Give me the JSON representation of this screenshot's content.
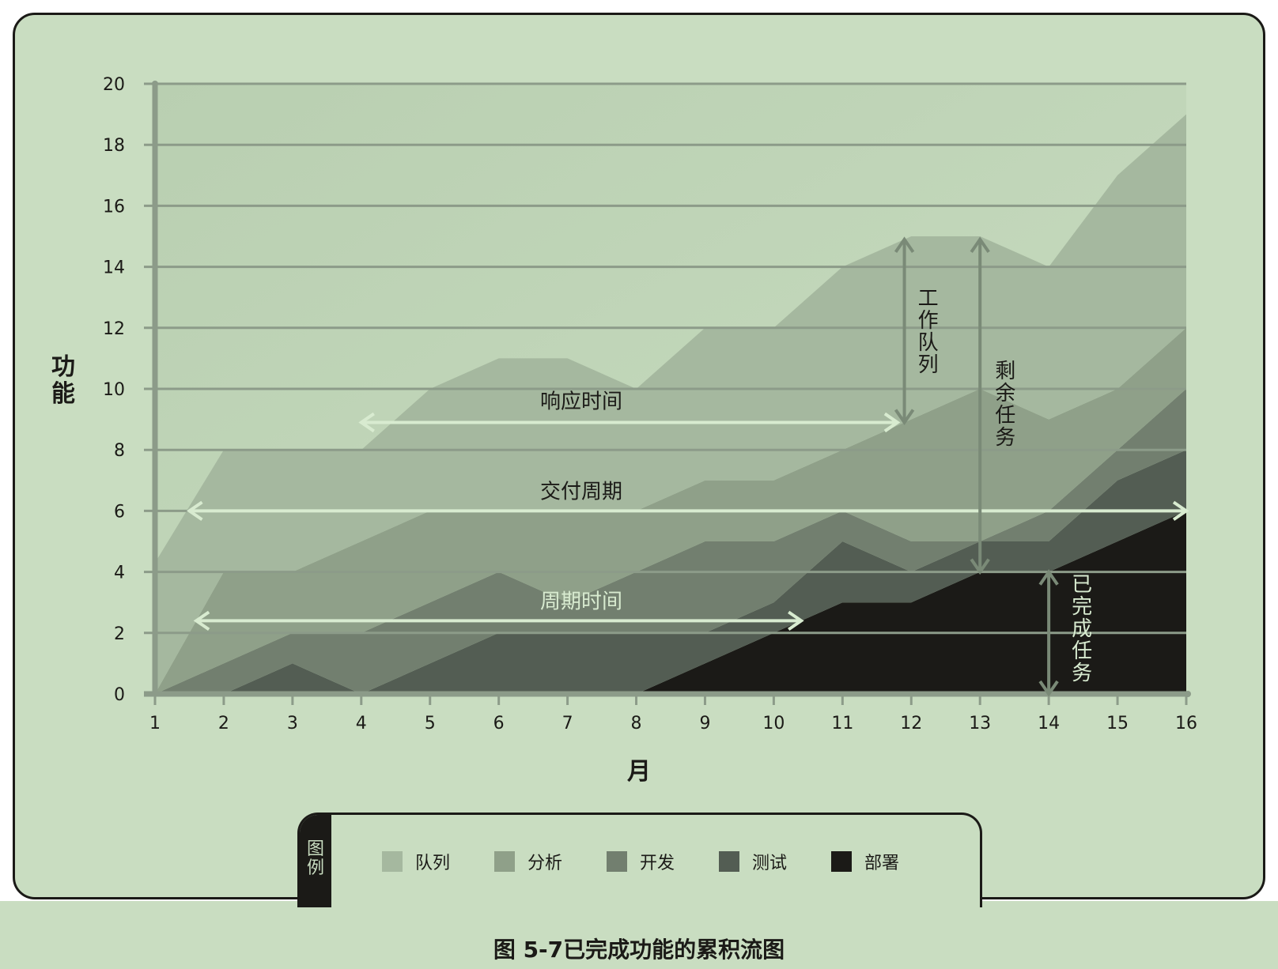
{
  "chart_data": {
    "type": "area",
    "stacked": true,
    "title": "",
    "xlabel": "月",
    "ylabel": "功能",
    "x": [
      1,
      2,
      3,
      4,
      5,
      6,
      7,
      8,
      9,
      10,
      11,
      12,
      13,
      14,
      15,
      16
    ],
    "xlim": [
      1,
      16
    ],
    "ylim": [
      0,
      20
    ],
    "y_ticks": [
      0,
      2,
      4,
      6,
      8,
      10,
      12,
      14,
      16,
      18,
      20
    ],
    "grid": true,
    "series": [
      {
        "name": "部署",
        "color": "#1b1a17",
        "values": [
          0,
          0,
          0,
          0,
          0,
          0,
          0,
          0,
          1,
          2,
          3,
          3,
          4,
          4,
          5,
          6
        ]
      },
      {
        "name": "测试",
        "color": "#535d53",
        "values": [
          0,
          0,
          1,
          0,
          1,
          2,
          2,
          2,
          1,
          1,
          2,
          1,
          1,
          1,
          2,
          2
        ]
      },
      {
        "name": "开发",
        "color": "#727f6f",
        "values": [
          0,
          1,
          1,
          2,
          2,
          2,
          1,
          2,
          3,
          2,
          1,
          1,
          0,
          1,
          1,
          2
        ]
      },
      {
        "name": "分析",
        "color": "#8fa089",
        "values": [
          0,
          3,
          2,
          3,
          3,
          2,
          3,
          2,
          2,
          2,
          2,
          4,
          5,
          3,
          2,
          2
        ]
      },
      {
        "name": "队列",
        "color": "#a5b89f",
        "values": [
          4.3,
          4,
          4,
          3,
          4,
          5,
          5,
          4,
          5,
          5,
          6,
          6,
          5,
          5,
          7,
          7
        ]
      }
    ],
    "annotations": [
      {
        "text": "响应时间",
        "kind": "horizontal",
        "x": [
          4,
          11.8
        ],
        "y": 8.9
      },
      {
        "text": "交付周期",
        "kind": "horizontal",
        "x": [
          1.5,
          16
        ],
        "y": 6
      },
      {
        "text": "周期时间",
        "kind": "horizontal",
        "x": [
          1.6,
          10.4
        ],
        "y": 2.4
      },
      {
        "text": "工作队列",
        "kind": "vertical",
        "x": 11.9,
        "y": [
          8.9,
          14.9
        ]
      },
      {
        "text": "剩余任务",
        "kind": "vertical",
        "x": 13,
        "y": [
          4,
          14.9
        ]
      },
      {
        "text": "已完成任务",
        "kind": "vertical",
        "x": 14,
        "y": [
          0,
          4
        ]
      }
    ]
  },
  "legend": {
    "title": "图例",
    "items": [
      {
        "label": "队列",
        "color": "#a5b89f"
      },
      {
        "label": "分析",
        "color": "#8fa089"
      },
      {
        "label": "开发",
        "color": "#727f6f"
      },
      {
        "label": "测试",
        "color": "#535d53"
      },
      {
        "label": "部署",
        "color": "#1b1a17"
      }
    ]
  },
  "caption": "图 5-7已完成功能的累积流图"
}
